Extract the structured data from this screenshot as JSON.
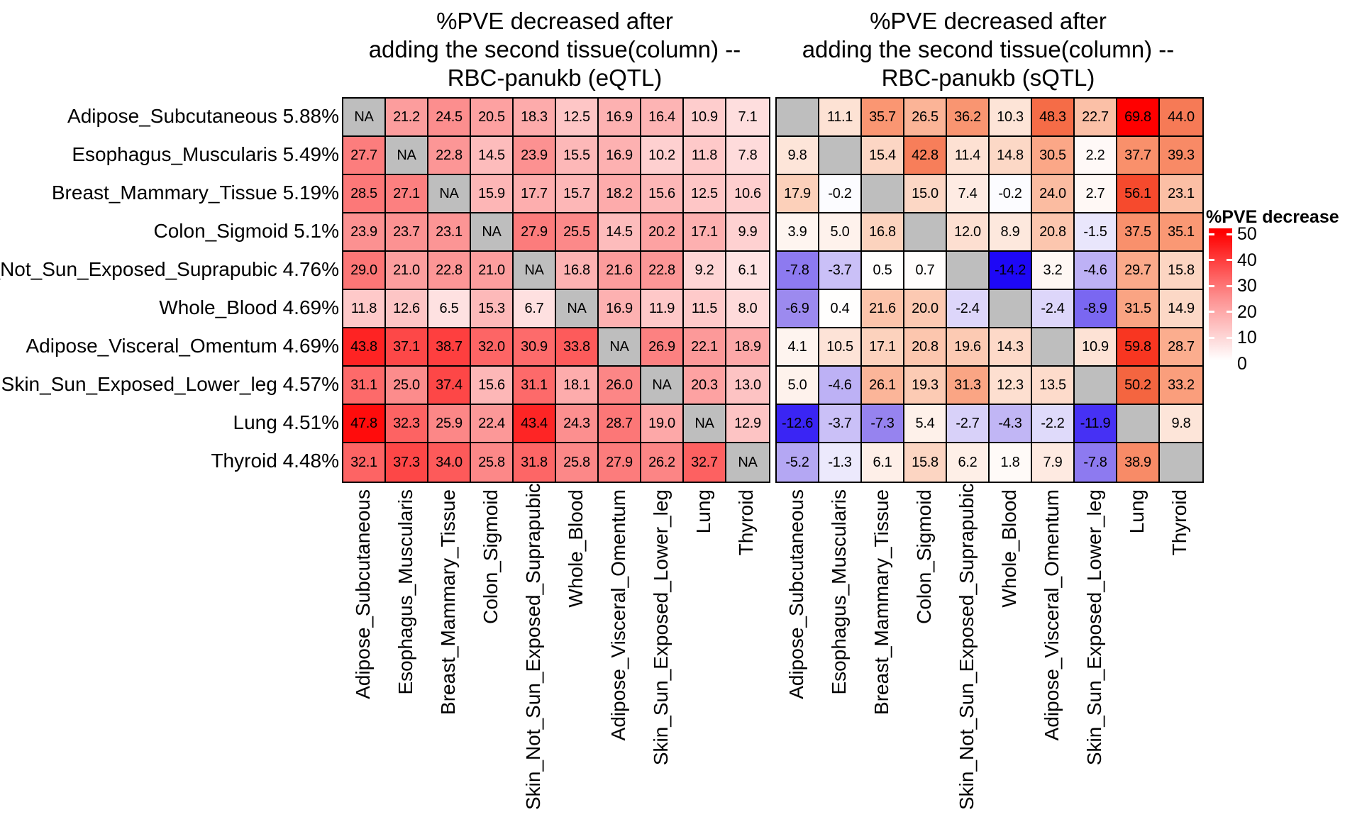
{
  "titles": {
    "left_lines": [
      "%PVE decreased after",
      "adding the second tissue(column) --",
      "RBC-panukb (eQTL)"
    ],
    "right_lines": [
      "%PVE decreased after",
      "adding the second tissue(column) --",
      "RBC-panukb (sQTL)"
    ]
  },
  "row_labels": [
    {
      "tissue": "Adipose_Subcutaneous",
      "pve": "5.88%"
    },
    {
      "tissue": "Esophagus_Muscularis",
      "pve": "5.49%"
    },
    {
      "tissue": "Breast_Mammary_Tissue",
      "pve": "5.19%"
    },
    {
      "tissue": "Colon_Sigmoid",
      "pve": "5.1%"
    },
    {
      "tissue": "Skin_Not_Sun_Exposed_Suprapubic",
      "pve": "4.76%"
    },
    {
      "tissue": "Whole_Blood",
      "pve": "4.69%"
    },
    {
      "tissue": "Adipose_Visceral_Omentum",
      "pve": "4.69%"
    },
    {
      "tissue": "Skin_Sun_Exposed_Lower_leg",
      "pve": "4.57%"
    },
    {
      "tissue": "Lung",
      "pve": "4.51%"
    },
    {
      "tissue": "Thyroid",
      "pve": "4.48%"
    }
  ],
  "legend": {
    "title": "%PVE decrease",
    "ticks": [
      50,
      40,
      30,
      20,
      10,
      0
    ]
  },
  "chart_data": [
    {
      "type": "heatmap",
      "name": "eQTL",
      "title": "%PVE decreased after adding the second tissue(column) -- RBC-panukb (eQTL)",
      "rows": [
        "Adipose_Subcutaneous",
        "Esophagus_Muscularis",
        "Breast_Mammary_Tissue",
        "Colon_Sigmoid",
        "Skin_Not_Sun_Exposed_Suprapubic",
        "Whole_Blood",
        "Adipose_Visceral_Omentum",
        "Skin_Sun_Exposed_Lower_leg",
        "Lung",
        "Thyroid"
      ],
      "columns": [
        "Adipose_Subcutaneous",
        "Esophagus_Muscularis",
        "Breast_Mammary_Tissue",
        "Colon_Sigmoid",
        "Skin_Not_Sun_Exposed_Suprapubic",
        "Whole_Blood",
        "Adipose_Visceral_Omentum",
        "Skin_Sun_Exposed_Lower_leg",
        "Lung",
        "Thyroid"
      ],
      "na_label": "NA",
      "na_color": "#BEBEBE",
      "color_scale": {
        "domain": [
          0,
          50
        ],
        "low": "#FFFFFF",
        "high": "#FF0000"
      },
      "values": [
        [
          null,
          21.2,
          24.5,
          20.5,
          18.3,
          12.5,
          16.9,
          16.4,
          10.9,
          7.1
        ],
        [
          27.7,
          null,
          22.8,
          14.5,
          23.9,
          15.5,
          16.9,
          10.2,
          11.8,
          7.8
        ],
        [
          28.5,
          27.1,
          null,
          15.9,
          17.7,
          15.7,
          18.2,
          15.6,
          12.5,
          10.6
        ],
        [
          23.9,
          23.7,
          23.1,
          null,
          27.9,
          25.5,
          14.5,
          20.2,
          17.1,
          9.9
        ],
        [
          29.0,
          21.0,
          22.8,
          21.0,
          null,
          16.8,
          21.6,
          22.8,
          9.2,
          6.1
        ],
        [
          11.8,
          12.6,
          6.5,
          15.3,
          6.7,
          null,
          16.9,
          11.9,
          11.5,
          8.0
        ],
        [
          43.8,
          37.1,
          38.7,
          32.0,
          30.9,
          33.8,
          null,
          26.9,
          22.1,
          18.9
        ],
        [
          31.1,
          25.0,
          37.4,
          15.6,
          31.1,
          18.1,
          26.0,
          null,
          20.3,
          13.0
        ],
        [
          47.8,
          32.3,
          25.9,
          22.4,
          43.4,
          24.3,
          28.7,
          19.0,
          null,
          12.9
        ],
        [
          32.1,
          37.3,
          34.0,
          25.8,
          31.8,
          25.8,
          27.9,
          26.2,
          32.7,
          null
        ]
      ]
    },
    {
      "type": "heatmap",
      "name": "sQTL",
      "title": "%PVE decreased after adding the second tissue(column) -- RBC-panukb (sQTL)",
      "rows": [
        "Adipose_Subcutaneous",
        "Esophagus_Muscularis",
        "Breast_Mammary_Tissue",
        "Colon_Sigmoid",
        "Skin_Not_Sun_Exposed_Suprapubic",
        "Whole_Blood",
        "Adipose_Visceral_Omentum",
        "Skin_Sun_Exposed_Lower_leg",
        "Lung",
        "Thyroid"
      ],
      "columns": [
        "Adipose_Subcutaneous",
        "Esophagus_Muscularis",
        "Breast_Mammary_Tissue",
        "Colon_Sigmoid",
        "Skin_Not_Sun_Exposed_Suprapubic",
        "Whole_Blood",
        "Adipose_Visceral_Omentum",
        "Skin_Sun_Exposed_Lower_leg",
        "Lung",
        "Thyroid"
      ],
      "na_label": "",
      "na_color": "#BEBEBE",
      "color_scale": {
        "domain": [
          -14.2,
          69.8
        ],
        "low": "#1E08F6",
        "mid": "#FFFFFF",
        "high": "#FF0000"
      },
      "values": [
        [
          null,
          11.1,
          35.7,
          26.5,
          36.2,
          10.3,
          48.3,
          22.7,
          69.8,
          44.0
        ],
        [
          9.8,
          null,
          15.4,
          42.8,
          11.4,
          14.8,
          30.5,
          2.2,
          37.7,
          39.3
        ],
        [
          17.9,
          -0.2,
          null,
          15.0,
          7.4,
          -0.2,
          24.0,
          2.7,
          56.1,
          23.1
        ],
        [
          3.9,
          5.0,
          16.8,
          null,
          12.0,
          8.9,
          20.8,
          -1.5,
          37.5,
          35.1
        ],
        [
          -7.8,
          -3.7,
          0.5,
          0.7,
          null,
          -14.2,
          3.2,
          -4.6,
          29.7,
          15.8
        ],
        [
          -6.9,
          0.4,
          21.6,
          20.0,
          -2.4,
          null,
          -2.4,
          -8.9,
          31.5,
          14.9
        ],
        [
          4.1,
          10.5,
          17.1,
          20.8,
          19.6,
          14.3,
          null,
          10.9,
          59.8,
          28.7
        ],
        [
          5.0,
          -4.6,
          26.1,
          19.3,
          31.3,
          12.3,
          13.5,
          null,
          50.2,
          33.2
        ],
        [
          -12.6,
          -3.7,
          -7.3,
          5.4,
          -2.7,
          -4.3,
          -2.2,
          -11.9,
          null,
          9.8
        ],
        [
          -5.2,
          -1.3,
          6.1,
          15.8,
          6.2,
          1.8,
          7.9,
          -7.8,
          38.9,
          null
        ]
      ]
    }
  ]
}
